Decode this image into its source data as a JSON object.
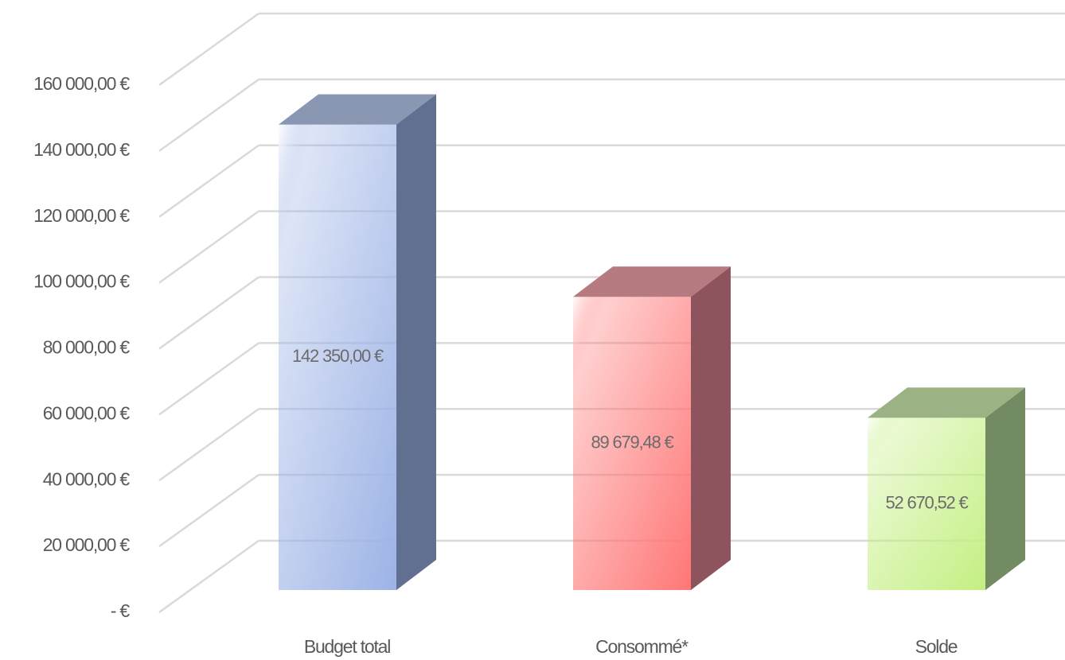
{
  "chart_data": {
    "type": "bar3d",
    "categories": [
      "Budget total",
      "Consommé*",
      "Solde"
    ],
    "values": [
      142350,
      89679.48,
      52670.52
    ],
    "value_labels": [
      "142 350,00 €",
      "89 679,48 €",
      "52 670,52 €"
    ],
    "colors": [
      "#9db3e6",
      "#ff7676",
      "#c4ef82"
    ],
    "ylim": [
      0,
      160000
    ],
    "yticks": [
      {
        "value": 0,
        "label": "-   €"
      },
      {
        "value": 20000,
        "label": "20 000,00 €"
      },
      {
        "value": 40000,
        "label": "40 000,00 €"
      },
      {
        "value": 60000,
        "label": "60 000,00 €"
      },
      {
        "value": 80000,
        "label": "80 000,00 €"
      },
      {
        "value": 100000,
        "label": "100 000,00 €"
      },
      {
        "value": 120000,
        "label": "120 000,00 €"
      },
      {
        "value": 140000,
        "label": "140 000,00 €"
      },
      {
        "value": 160000,
        "label": "160 000,00 €"
      }
    ],
    "grid": true
  }
}
